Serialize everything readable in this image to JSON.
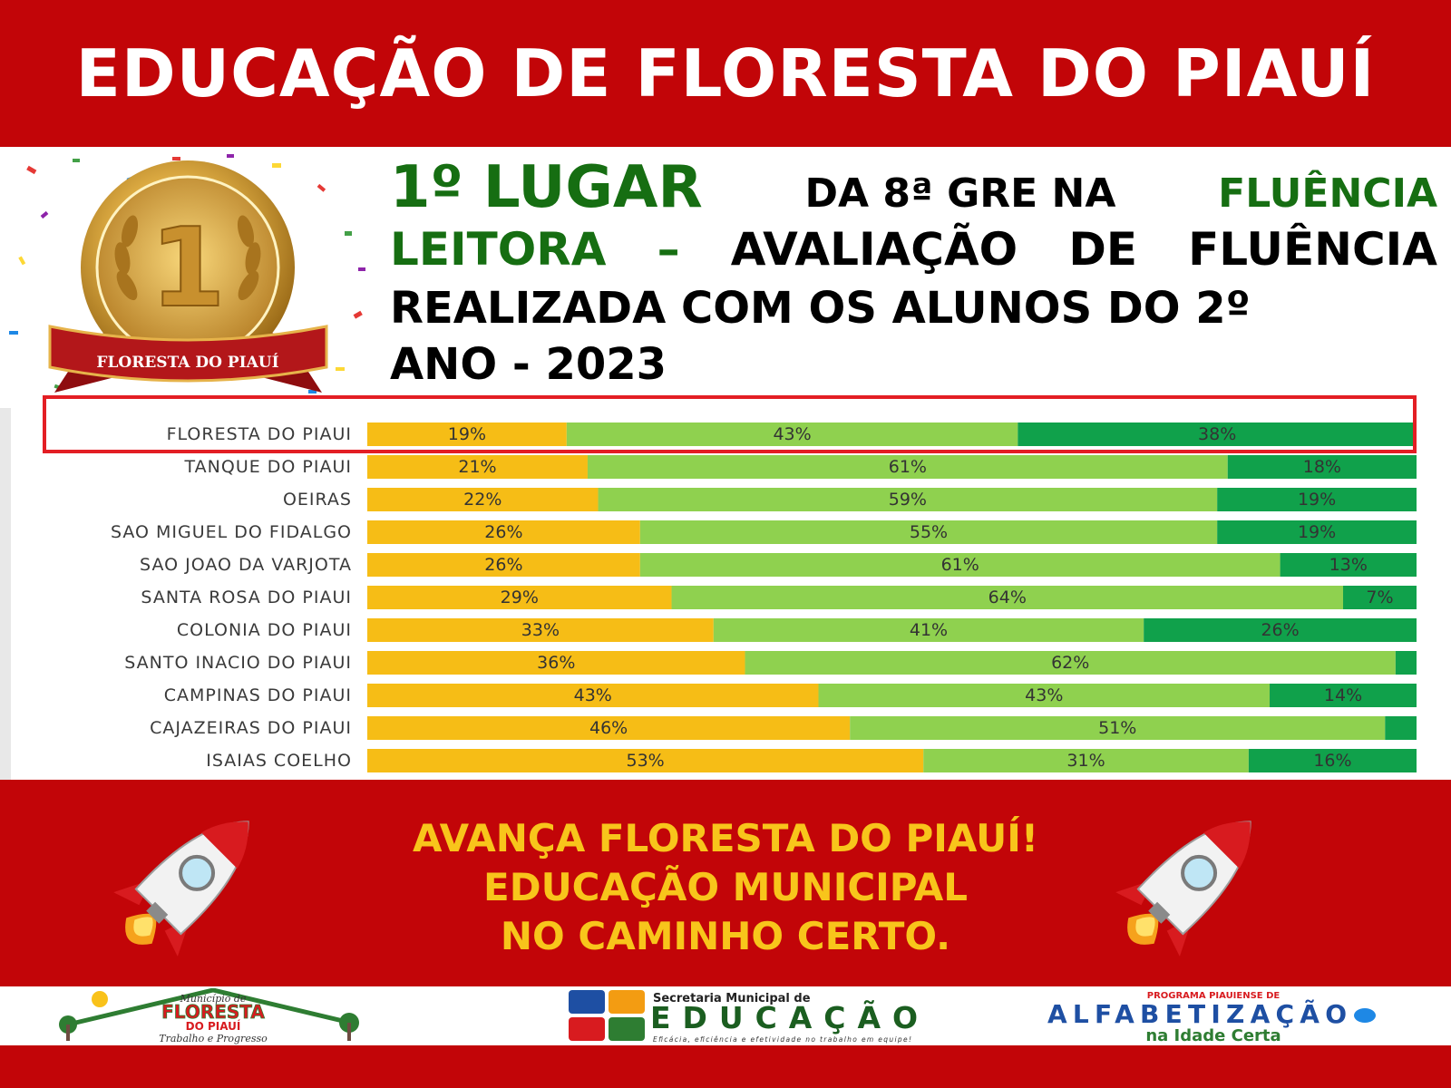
{
  "header": {
    "title": "EDUCAÇÃO DE FLORESTA DO PIAUÍ"
  },
  "medal": {
    "number": "1",
    "ribbon_text": "FLORESTA DO PIAUÍ",
    "icon": "gold-medal-icon"
  },
  "headline": {
    "place": "1º LUGAR",
    "part1": "DA 8ª GRE NA",
    "green1": "FLUÊNCIA",
    "green2": "LEITORA",
    "dash": "–",
    "w1": "AVALIAÇÃO",
    "w2": "DE",
    "w3": "FLUÊNCIA",
    "line3": "REALIZADA COM OS ALUNOS DO 2º",
    "line4": "ANO - 2023"
  },
  "chart_data": {
    "type": "bar",
    "orientation": "horizontal-stacked-100",
    "categories": [
      "FLORESTA DO PIAUI",
      "TANQUE DO PIAUI",
      "OEIRAS",
      "SAO MIGUEL DO FIDALGO",
      "SAO JOAO DA VARJOTA",
      "SANTA ROSA DO PIAUI",
      "COLONIA DO PIAUI",
      "SANTO INACIO DO PIAUI",
      "CAMPINAS DO PIAUI",
      "CAJAZEIRAS DO PIAUI",
      "ISAIAS COELHO"
    ],
    "series": [
      {
        "values": [
          19,
          21,
          22,
          26,
          26,
          29,
          33,
          36,
          43,
          46,
          53
        ],
        "labels": [
          "19%",
          "21%",
          "22%",
          "26%",
          "26%",
          "29%",
          "33%",
          "36%",
          "43%",
          "46%",
          "53%"
        ],
        "color": "#f6bd16"
      },
      {
        "values": [
          43,
          61,
          59,
          55,
          61,
          64,
          41,
          62,
          43,
          51,
          31
        ],
        "labels": [
          "43%",
          "61%",
          "59%",
          "55%",
          "61%",
          "64%",
          "41%",
          "62%",
          "43%",
          "51%",
          "31%"
        ],
        "color": "#8fd14f"
      },
      {
        "values": [
          38,
          18,
          19,
          19,
          13,
          7,
          26,
          2,
          14,
          3,
          16
        ],
        "labels": [
          "38%",
          "18%",
          "19%",
          "19%",
          "13%",
          "7%",
          "26%",
          "",
          "14%",
          "",
          "16%"
        ],
        "color": "#10a14b"
      }
    ],
    "highlighted_category": "FLORESTA DO PIAUI",
    "highlight_color": "#e31e24",
    "grid": false,
    "legend": "none"
  },
  "slogan": {
    "line1": "AVANÇA FLORESTA DO PIAUÍ!",
    "line2": "EDUCAÇÃO MUNICIPAL",
    "line3": "NO CAMINHO CERTO."
  },
  "logos": {
    "municipio": {
      "top": "Município de",
      "name": "FLORESTA",
      "sub": "DO PIAUÍ",
      "motto": "Trabalho e Progresso",
      "icon": "house-tree-logo-icon"
    },
    "secretaria": {
      "top": "Secretaria Municipal de",
      "name": "EDUCAÇÃO",
      "motto": "Eficácia, eficiência e efetividade no trabalho em equipe!",
      "icon": "education-grid-icon"
    },
    "programa": {
      "top": "PROGRAMA PIAUIENSE DE",
      "name": "ALFABETIZAÇÃO",
      "sub": "na Idade Certa",
      "icon": "footprint-icon"
    }
  },
  "colors": {
    "brand_red": "#c20508",
    "slogan_yellow": "#f8c51b",
    "headline_green": "#166e12"
  }
}
